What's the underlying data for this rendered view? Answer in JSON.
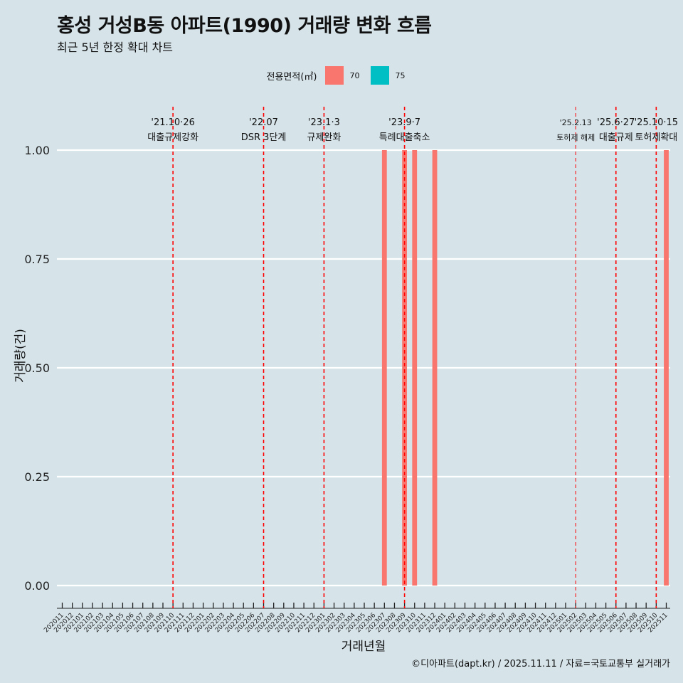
{
  "header": {
    "title": "홍성 거성B동 아파트(1990) 거래량 변화 흐름",
    "subtitle": "최근 5년 한정 확대 차트"
  },
  "caption": "©디아파트(dapt.kr) / 2025.11.11 / 자료=국토교통부 실거래가",
  "colors": {
    "background": "#d6e4ea",
    "series70": "#f8766d",
    "series75": "#00bfc4",
    "eventLine": "#ff0000"
  },
  "chart_data": {
    "type": "bar",
    "title": "홍성 거성B동 아파트(1990) 거래량 변화 흐름",
    "xlabel": "거래년월",
    "ylabel": "거래량(건)",
    "ylim": [
      0,
      1
    ],
    "yticks": [
      "0.00",
      "0.25",
      "0.50",
      "0.75",
      "1.00"
    ],
    "legend": {
      "title": "전용면적(㎡)",
      "position": "top",
      "entries": [
        {
          "label": "70",
          "color": "#f8766d"
        },
        {
          "label": "75",
          "color": "#00bfc4"
        }
      ]
    },
    "categories": [
      "202011",
      "202012",
      "202101",
      "202102",
      "202103",
      "202104",
      "202105",
      "202106",
      "202107",
      "202108",
      "202109",
      "202110",
      "202111",
      "202112",
      "202201",
      "202202",
      "202203",
      "202204",
      "202205",
      "202206",
      "202207",
      "202208",
      "202209",
      "202210",
      "202211",
      "202212",
      "202301",
      "202302",
      "202303",
      "202304",
      "202305",
      "202306",
      "202307",
      "202308",
      "202309",
      "202310",
      "202311",
      "202312",
      "202401",
      "202402",
      "202403",
      "202404",
      "202405",
      "202406",
      "202407",
      "202408",
      "202409",
      "202410",
      "202411",
      "202412",
      "202501",
      "202502",
      "202503",
      "202504",
      "202505",
      "202506",
      "202507",
      "202508",
      "202509",
      "202510",
      "202511"
    ],
    "series": [
      {
        "name": "70",
        "color": "#f8766d",
        "values": [
          0,
          0,
          0,
          0,
          0,
          0,
          0,
          0,
          0,
          0,
          0,
          0,
          0,
          0,
          0,
          0,
          0,
          0,
          0,
          0,
          0,
          0,
          0,
          0,
          0,
          0,
          0,
          0,
          0,
          0,
          0,
          0,
          1,
          0,
          1,
          1,
          0,
          1,
          0,
          0,
          0,
          0,
          0,
          0,
          0,
          0,
          0,
          0,
          0,
          0,
          0,
          0,
          0,
          0,
          0,
          0,
          0,
          0,
          0,
          0,
          1
        ]
      },
      {
        "name": "75",
        "color": "#00bfc4",
        "values": [
          0,
          0,
          0,
          0,
          0,
          0,
          0,
          0,
          0,
          0,
          0,
          0,
          0,
          0,
          0,
          0,
          0,
          0,
          0,
          0,
          0,
          0,
          0,
          0,
          0,
          0,
          0,
          0,
          0,
          0,
          0,
          0,
          0,
          0,
          0,
          0,
          0,
          0,
          0,
          0,
          0,
          0,
          0,
          0,
          0,
          0,
          0,
          0,
          0,
          0,
          0,
          0,
          0,
          0,
          0,
          0,
          0,
          0,
          0,
          0,
          0
        ]
      }
    ],
    "events": [
      {
        "month": "202110",
        "date": "'21.10·26",
        "label": "대출규제강화",
        "dashed_thin": false
      },
      {
        "month": "202207",
        "date": "'22.07",
        "label": "DSR 3단계",
        "dashed_thin": false
      },
      {
        "month": "202301",
        "date": "'23.1·3",
        "label": "규제완화",
        "dashed_thin": false
      },
      {
        "month": "202309",
        "date": "'23.9·7",
        "label": "특례대출축소",
        "dashed_thin": false
      },
      {
        "month": "202502",
        "date": "'25.2.13",
        "label": "토허제 해제",
        "dashed_thin": true
      },
      {
        "month": "202506",
        "date": "'25.6·27",
        "label": "대출규제",
        "dashed_thin": false
      },
      {
        "month": "202510",
        "date": "'25.10·15",
        "label": "토허제확대",
        "dashed_thin": false
      }
    ]
  }
}
